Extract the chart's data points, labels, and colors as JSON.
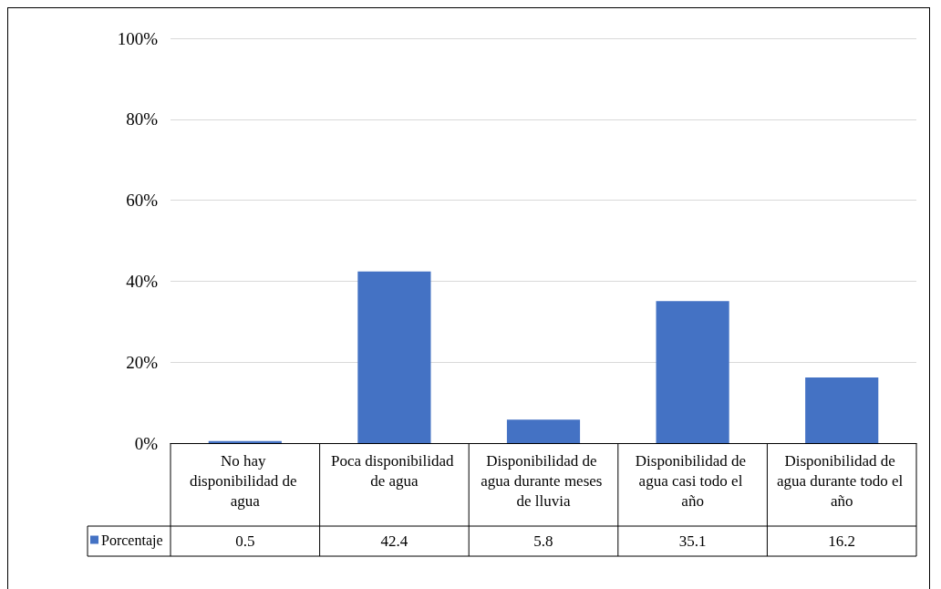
{
  "chart_data": {
    "type": "bar",
    "categories": [
      "No hay disponibilidad de agua",
      "Poca disponibilidad de agua",
      "Disponibilidad de agua durante meses de lluvia",
      "Disponibilidad de agua casi todo el año",
      "Disponibilidad de agua durante todo el año"
    ],
    "series": [
      {
        "name": "Porcentaje",
        "color": "#4472c4",
        "values": [
          0.5,
          42.4,
          5.8,
          35.1,
          16.2
        ]
      }
    ],
    "ylim": [
      0,
      100
    ],
    "yticks": [
      {
        "value": 0,
        "label": "0%"
      },
      {
        "value": 20,
        "label": "20%"
      },
      {
        "value": 40,
        "label": "40%"
      },
      {
        "value": 60,
        "label": "60%"
      },
      {
        "value": 80,
        "label": "80%"
      },
      {
        "value": 100,
        "label": "100%"
      }
    ],
    "grid": "y",
    "legend": "bottom left",
    "data_labels": true
  }
}
